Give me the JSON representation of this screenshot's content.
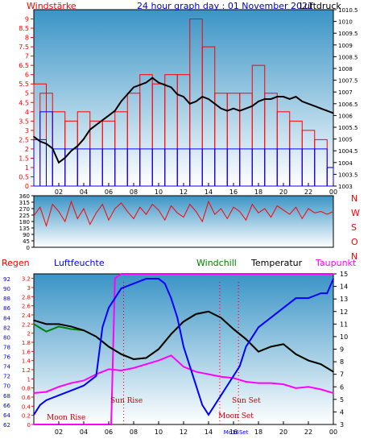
{
  "colors": {
    "gradient_top": "#3a94c6",
    "gradient_bottom": "#ffffff",
    "wind_gust": "#ff0000",
    "wind_avg": "#0000ff",
    "pressure": "#000000",
    "wind_dir": "#ff0000",
    "humidity": "#0000ff",
    "temperature": "#000000",
    "windchill": "#008000",
    "dewpoint": "#ff00ff",
    "rain": "#ff0000",
    "moon_sun_text": "#cc0000",
    "dir_axis_text": "#ff0000"
  },
  "chart_data": [
    {
      "type": "bar",
      "title": "24 hour graph day : 01 November 2021",
      "left_label": "Windstärke",
      "right_label": "Luftdruck",
      "x_ticks": [
        "02",
        "04",
        "06",
        "08",
        "10",
        "12",
        "14",
        "16",
        "18",
        "20",
        "22",
        "00"
      ],
      "y_left_ticks": [
        "0",
        "0.5",
        "1",
        "1.5",
        "2",
        "2.5",
        "3",
        "3.5",
        "4",
        "4.5",
        "5",
        "5.5",
        "6",
        "6.5",
        "7",
        "7.5",
        "8",
        "8.5",
        "9"
      ],
      "y_right_ticks": [
        "1003",
        "1003.5",
        "1004",
        "1004.5",
        "1005",
        "1005.5",
        "1006",
        "1006.5",
        "1007",
        "1007.5",
        "1008",
        "1008.5",
        "1009",
        "1009.5",
        "1010",
        "1010.5"
      ],
      "ylim_left": [
        0,
        9.5
      ],
      "ylim_right": [
        1003,
        1010.5
      ],
      "series": [
        {
          "name": "Windstärke",
          "key": "gust",
          "hours": [
            0,
            1,
            2,
            3,
            4,
            5,
            6,
            7,
            8,
            9,
            10,
            11,
            12,
            13,
            14,
            15,
            16,
            17,
            18,
            19,
            20,
            21,
            22,
            23,
            24
          ],
          "values": [
            5.5,
            5,
            4,
            3.5,
            4,
            3.5,
            3.5,
            4,
            5,
            6,
            5.5,
            6,
            6,
            9,
            7.5,
            5,
            5,
            5,
            6.5,
            5,
            4,
            3.5,
            3,
            2.5,
            1
          ]
        },
        {
          "name": "Windstärke (avg)",
          "key": "avg",
          "hours": [
            0,
            1,
            2,
            3,
            4,
            5,
            6,
            7,
            8,
            9,
            10,
            11,
            12,
            13,
            14,
            15,
            16,
            17,
            18,
            19,
            20,
            21,
            22,
            23,
            24
          ],
          "values": [
            2.5,
            4,
            2,
            2,
            2,
            2,
            2,
            2,
            2,
            2,
            2,
            2,
            2,
            2,
            2,
            2,
            2,
            2,
            2,
            2,
            2,
            2,
            2,
            2,
            1
          ]
        },
        {
          "name": "Luftdruck",
          "key": "pressure",
          "hours": [
            0,
            0.5,
            1,
            1.5,
            2,
            2.5,
            3,
            3.5,
            4,
            4.5,
            5,
            5.5,
            6,
            6.5,
            7,
            7.5,
            8,
            8.5,
            9,
            9.5,
            10,
            10.5,
            11,
            11.5,
            12,
            12.5,
            13,
            13.5,
            14,
            14.5,
            15,
            15.5,
            16,
            16.5,
            17,
            17.5,
            18,
            18.5,
            19,
            19.5,
            20,
            20.5,
            21,
            21.5,
            22,
            22.5,
            23,
            23.5,
            24
          ],
          "values": [
            1005.1,
            1004.9,
            1004.8,
            1004.6,
            1004.0,
            1004.2,
            1004.5,
            1004.7,
            1005.0,
            1005.4,
            1005.6,
            1005.8,
            1006.0,
            1006.2,
            1006.6,
            1006.9,
            1007.2,
            1007.3,
            1007.4,
            1007.6,
            1007.4,
            1007.3,
            1007.2,
            1006.9,
            1006.8,
            1006.5,
            1006.6,
            1006.8,
            1006.7,
            1006.5,
            1006.3,
            1006.2,
            1006.3,
            1006.2,
            1006.3,
            1006.4,
            1006.6,
            1006.7,
            1006.7,
            1006.8,
            1006.8,
            1006.7,
            1006.8,
            1006.6,
            1006.5,
            1006.4,
            1006.3,
            1006.2,
            1006.1
          ]
        }
      ]
    },
    {
      "type": "line",
      "title": "",
      "right_axis_letters": [
        "N",
        "W",
        "S",
        "O",
        "N"
      ],
      "y_ticks": [
        "0",
        "45",
        "90",
        "135",
        "180",
        "225",
        "270",
        "315",
        "360"
      ],
      "ylim": [
        0,
        360
      ],
      "series": [
        {
          "name": "",
          "key": "wind_dir",
          "hours": [
            0,
            0.5,
            1,
            1.5,
            2,
            2.5,
            3,
            3.5,
            4,
            4.5,
            5,
            5.5,
            6,
            6.5,
            7,
            7.5,
            8,
            8.5,
            9,
            9.5,
            10,
            10.5,
            11,
            11.5,
            12,
            12.5,
            13,
            13.5,
            14,
            14.5,
            15,
            15.5,
            16,
            16.5,
            17,
            17.5,
            18,
            18.5,
            19,
            19.5,
            20,
            20.5,
            21,
            21.5,
            22,
            22.5,
            23,
            23.5,
            24
          ],
          "values": [
            220,
            280,
            150,
            300,
            250,
            180,
            320,
            200,
            270,
            160,
            240,
            300,
            190,
            270,
            310,
            250,
            200,
            280,
            230,
            300,
            260,
            190,
            290,
            240,
            210,
            300,
            250,
            180,
            320,
            230,
            270,
            200,
            280,
            250,
            190,
            300,
            240,
            270,
            210,
            290,
            260,
            230,
            280,
            200,
            270,
            240,
            250,
            230,
            250
          ]
        }
      ]
    },
    {
      "type": "line",
      "title": "",
      "axis_titles": {
        "rain": "Regen",
        "humidity": "Luftfeuchte",
        "windchill": "Windchill",
        "temperature": "Temperatur",
        "dewpoint": "Taupunkt"
      },
      "x_ticks": [
        "02",
        "04",
        "06",
        "08",
        "10",
        "12",
        "14",
        "16",
        "18",
        "20",
        "22",
        "00"
      ],
      "humidity_ticks": [
        "62",
        "64",
        "66",
        "68",
        "70",
        "72",
        "74",
        "76",
        "78",
        "80",
        "82",
        "84",
        "86",
        "88",
        "90",
        "92"
      ],
      "rain_ticks": [
        "0",
        "0.2",
        "0.4",
        "0.6",
        "0.8",
        "1",
        "1.2",
        "1.4",
        "1.6",
        "1.8",
        "2",
        "2.2",
        "2.4",
        "2.6",
        "2.8",
        "3",
        "3.2"
      ],
      "temp_ticks": [
        "3",
        "4",
        "5",
        "6",
        "7",
        "8",
        "9",
        "10",
        "11",
        "12",
        "13",
        "14",
        "15"
      ],
      "ylim_humidity": [
        62,
        93
      ],
      "ylim_temp": [
        3,
        15
      ],
      "ylim_rain": [
        0,
        3.3
      ],
      "annotations": {
        "moon_rise": "Moon Rise",
        "sun_rise": "Sun Rise",
        "moon_set": "Moon Set",
        "sun_set": "Sun Set",
        "marker_label": "Mo16Set"
      },
      "series": [
        {
          "name": "Temperatur",
          "key": "temperature",
          "hours": [
            0,
            1,
            2,
            3,
            4,
            5,
            6,
            7,
            8,
            9,
            10,
            11,
            12,
            13,
            14,
            15,
            16,
            17,
            18,
            19,
            20,
            21,
            22,
            23,
            24
          ],
          "values": [
            11.3,
            11.0,
            11.0,
            10.8,
            10.5,
            10.0,
            9.2,
            8.6,
            8.2,
            8.3,
            9.0,
            10.2,
            11.2,
            11.8,
            12.0,
            11.5,
            10.6,
            9.8,
            8.8,
            9.2,
            9.4,
            8.6,
            8.1,
            7.8,
            7.2
          ]
        },
        {
          "name": "Windchill",
          "key": "windchill",
          "hours": [
            0,
            1,
            2,
            3,
            4,
            5,
            6,
            7,
            8,
            9,
            10,
            11,
            12,
            13,
            14,
            15,
            16,
            17,
            18,
            19,
            20,
            21,
            22,
            23,
            24
          ],
          "values": [
            11.0,
            10.4,
            10.8,
            10.6,
            10.5,
            10.0,
            9.2,
            8.6,
            8.2,
            8.3,
            9.0,
            10.2,
            11.2,
            11.8,
            12.0,
            11.5,
            10.6,
            9.8,
            8.8,
            9.2,
            9.4,
            8.6,
            8.1,
            7.8,
            7.2
          ]
        },
        {
          "name": "Taupunkt",
          "key": "dewpoint",
          "hours": [
            0,
            1,
            2,
            3,
            4,
            5,
            6,
            7,
            8,
            9,
            10,
            11,
            12,
            13,
            14,
            15,
            16,
            17,
            18,
            19,
            20,
            21,
            22,
            23,
            24
          ],
          "values": [
            5.5,
            5.6,
            6.0,
            6.3,
            6.5,
            7.0,
            7.4,
            7.3,
            7.5,
            7.8,
            8.1,
            8.5,
            7.6,
            7.2,
            7.0,
            6.8,
            6.7,
            6.4,
            6.3,
            6.3,
            6.2,
            5.9,
            6.0,
            5.8,
            5.5
          ]
        },
        {
          "name": "Luftfeuchte",
          "key": "humidity",
          "hours": [
            0,
            0.5,
            1,
            2,
            3,
            4,
            5,
            5.5,
            6,
            6.5,
            7,
            8,
            9,
            10,
            10.5,
            11,
            11.5,
            12,
            12.5,
            13,
            13.5,
            14,
            14.5,
            15,
            15.5,
            16,
            16.5,
            17,
            17.5,
            18,
            19,
            20,
            21,
            22,
            23,
            23.5,
            24
          ],
          "values": [
            64,
            66,
            67,
            68,
            69,
            70,
            72,
            82,
            86,
            88,
            90,
            91,
            92,
            92,
            91,
            88,
            84,
            78,
            74,
            70,
            66,
            64,
            66,
            68,
            70,
            72,
            74,
            78,
            80,
            82,
            84,
            86,
            88,
            88,
            89,
            89,
            92
          ]
        },
        {
          "name": "Regen",
          "key": "rain",
          "hours": [
            0,
            6.2,
            6.5,
            7,
            24
          ],
          "values": [
            0,
            0,
            3.2,
            3.3,
            3.3
          ]
        }
      ]
    }
  ]
}
